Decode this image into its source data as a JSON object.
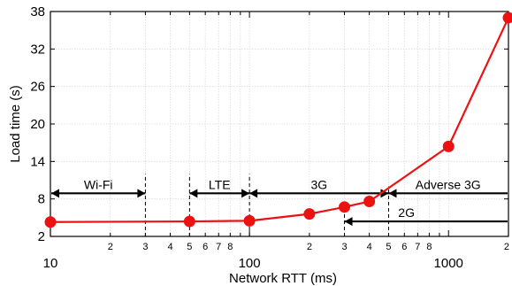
{
  "chart_data": {
    "type": "line",
    "xlabel": "Network RTT (ms)",
    "ylabel": "Load time (s)",
    "xscale": "log",
    "xlim": [
      10,
      2000
    ],
    "ylim": [
      2,
      38
    ],
    "yticks": [
      2,
      8,
      14,
      20,
      26,
      32,
      38
    ],
    "xticks_major": [
      10,
      100,
      1000
    ],
    "xticks_minor": [
      {
        "v": 20,
        "label": "2"
      },
      {
        "v": 30,
        "label": "3"
      },
      {
        "v": 40,
        "label": "4"
      },
      {
        "v": 50,
        "label": "5"
      },
      {
        "v": 60,
        "label": "6"
      },
      {
        "v": 70,
        "label": "7"
      },
      {
        "v": 80,
        "label": "8"
      },
      {
        "v": 90,
        "label": ""
      },
      {
        "v": 200,
        "label": "2"
      },
      {
        "v": 300,
        "label": "3"
      },
      {
        "v": 400,
        "label": "4"
      },
      {
        "v": 500,
        "label": "5"
      },
      {
        "v": 600,
        "label": "6"
      },
      {
        "v": 700,
        "label": "7"
      },
      {
        "v": 800,
        "label": "8"
      },
      {
        "v": 900,
        "label": ""
      },
      {
        "v": 2000,
        "label": "2"
      }
    ],
    "grid": true,
    "series": [
      {
        "color": "#ee1111",
        "x": [
          10,
          50,
          100,
          200,
          300,
          400,
          1000,
          2000
        ],
        "y": [
          4.3,
          4.4,
          4.5,
          5.6,
          6.7,
          7.6,
          16.4,
          37.0
        ]
      }
    ],
    "bands": [
      {
        "label": "Wi-Fi",
        "from": 10,
        "to": 30,
        "y": 8.9,
        "arrows": "both"
      },
      {
        "label": "LTE",
        "from": 50,
        "to": 100,
        "y": 8.9,
        "arrows": "both"
      },
      {
        "label": "3G",
        "from": 100,
        "to": 500,
        "y": 8.9,
        "arrows": "both"
      },
      {
        "label": "Adverse 3G",
        "from": 500,
        "to": 2000,
        "y": 8.9,
        "arrows": "left"
      },
      {
        "label": "2G",
        "from": 300,
        "to": 2000,
        "y": 4.4,
        "arrows": "left"
      }
    ],
    "separators": [
      {
        "x": 30,
        "ymin": 2,
        "ymax": 12
      },
      {
        "x": 50,
        "ymin": 2,
        "ymax": 12
      },
      {
        "x": 100,
        "ymin": 2,
        "ymax": 12
      },
      {
        "x": 500,
        "ymin": 2,
        "ymax": 10
      },
      {
        "x": 300,
        "ymin": 2,
        "ymax": 6
      }
    ]
  }
}
